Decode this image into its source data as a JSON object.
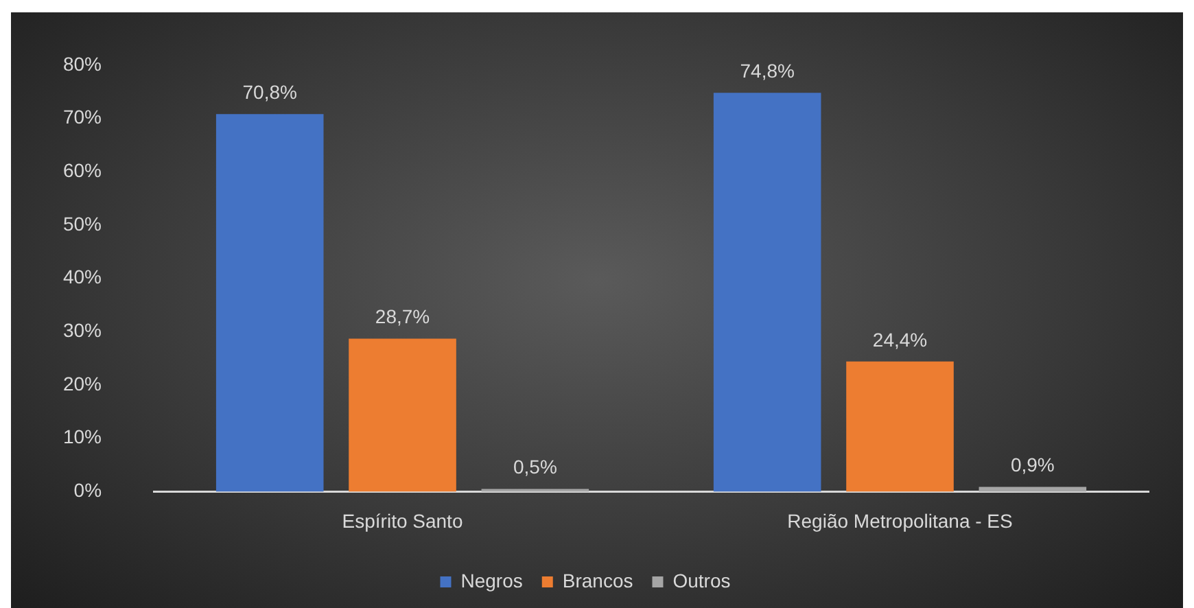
{
  "chart_data": {
    "type": "bar",
    "categories": [
      "Espírito Santo",
      "Região Metropolitana - ES"
    ],
    "series": [
      {
        "name": "Negros",
        "color": "#4472c4",
        "values": [
          70.8,
          74.8
        ],
        "value_labels": [
          "70,8%",
          "74,8%"
        ]
      },
      {
        "name": "Brancos",
        "color": "#ed7d31",
        "values": [
          28.7,
          24.4
        ],
        "value_labels": [
          "28,7%",
          "24,4%"
        ]
      },
      {
        "name": "Outros",
        "color": "#a5a5a5",
        "values": [
          0.5,
          0.9
        ],
        "value_labels": [
          "0,5%",
          "0,9%"
        ]
      }
    ],
    "ylim": [
      0,
      80
    ],
    "yticks": [
      {
        "value": 0,
        "label": "0%"
      },
      {
        "value": 10,
        "label": "10%"
      },
      {
        "value": 20,
        "label": "20%"
      },
      {
        "value": 30,
        "label": "30%"
      },
      {
        "value": 40,
        "label": "40%"
      },
      {
        "value": 50,
        "label": "50%"
      },
      {
        "value": 60,
        "label": "60%"
      },
      {
        "value": 70,
        "label": "70%"
      },
      {
        "value": 80,
        "label": "80%"
      }
    ],
    "grid": false,
    "legend": "bottom"
  }
}
